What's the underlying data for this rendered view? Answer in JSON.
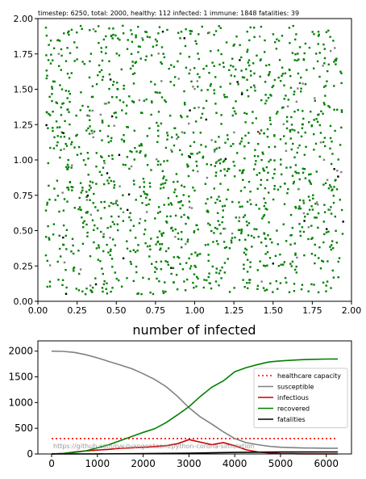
{
  "chart_data": [
    {
      "type": "scatter",
      "title": "timestep: 6250, total: 2000, healthy: 112 infected: 1 immune: 1848 fatalities: 39",
      "xlim": [
        0,
        2.0
      ],
      "ylim": [
        0,
        2.0
      ],
      "xticks": [
        "0.00",
        "0.25",
        "0.50",
        "0.75",
        "1.00",
        "1.25",
        "1.50",
        "1.75",
        "2.00"
      ],
      "yticks": [
        "0.00",
        "0.25",
        "0.50",
        "0.75",
        "1.00",
        "1.25",
        "1.50",
        "1.75",
        "2.00"
      ],
      "xtick_values": [
        0,
        0.25,
        0.5,
        0.75,
        1.0,
        1.25,
        1.5,
        1.75,
        2.0
      ],
      "ytick_values": [
        0,
        0.25,
        0.5,
        0.75,
        1.0,
        1.25,
        1.5,
        1.75,
        2.0
      ],
      "grid": false,
      "counts": {
        "total": 2000,
        "healthy": 112,
        "infected": 1,
        "immune": 1848,
        "fatalities": 39
      },
      "series_colors": {
        "healthy": "#808080",
        "infected": "#d00000",
        "immune": "#008000",
        "fatalities": "#000000"
      },
      "note_points": "population scattered uniformly over the 2.0 x 2.0 area; a small seeded sample is drawn"
    },
    {
      "type": "line",
      "title": "number of infected",
      "xlim": [
        -300,
        6550
      ],
      "ylim": [
        0,
        2200
      ],
      "xticks": [
        "0",
        "1000",
        "2000",
        "3000",
        "4000",
        "5000",
        "6000"
      ],
      "xtick_values": [
        0,
        1000,
        2000,
        3000,
        4000,
        5000,
        6000
      ],
      "yticks": [
        "0",
        "500",
        "1000",
        "1500",
        "2000"
      ],
      "ytick_values": [
        0,
        500,
        1000,
        1500,
        2000
      ],
      "legend_position": "center-right",
      "watermark": "https://github.com/paulvangentcom/python-corona-simulation",
      "healthcare_capacity": 300,
      "series": [
        {
          "name": "healthcare capacity",
          "color": "#ff0000",
          "style": "dotted",
          "x": [
            0,
            6250
          ],
          "values": [
            300,
            300
          ]
        },
        {
          "name": "susceptible",
          "color": "#808080",
          "style": "solid",
          "x": [
            0,
            250,
            500,
            750,
            1000,
            1250,
            1500,
            1750,
            2000,
            2250,
            2500,
            2750,
            3000,
            3250,
            3500,
            3750,
            4000,
            4250,
            4500,
            4750,
            5000,
            5250,
            5500,
            5750,
            6000,
            6250
          ],
          "values": [
            2000,
            1995,
            1975,
            1930,
            1870,
            1800,
            1730,
            1660,
            1560,
            1450,
            1310,
            1120,
            900,
            720,
            580,
            430,
            300,
            220,
            180,
            150,
            130,
            122,
            117,
            114,
            112,
            112
          ]
        },
        {
          "name": "infectious",
          "color": "#cc0000",
          "style": "solid",
          "x": [
            0,
            250,
            500,
            750,
            1000,
            1250,
            1500,
            1750,
            2000,
            2250,
            2500,
            2750,
            3000,
            3250,
            3500,
            3750,
            4000,
            4250,
            4500,
            4750,
            5000,
            5250,
            5500,
            5750,
            6000,
            6250
          ],
          "values": [
            1,
            10,
            40,
            60,
            75,
            90,
            110,
            120,
            130,
            145,
            160,
            200,
            280,
            230,
            180,
            220,
            160,
            80,
            40,
            20,
            8,
            4,
            2,
            1,
            1,
            1
          ]
        },
        {
          "name": "recovered",
          "color": "#008000",
          "style": "solid",
          "x": [
            0,
            250,
            500,
            750,
            1000,
            1250,
            1500,
            1750,
            2000,
            2250,
            2500,
            2750,
            3000,
            3250,
            3500,
            3750,
            4000,
            4250,
            4500,
            4750,
            5000,
            5250,
            5500,
            5750,
            6000,
            6250
          ],
          "values": [
            0,
            10,
            30,
            60,
            120,
            180,
            260,
            340,
            420,
            490,
            610,
            760,
            920,
            1120,
            1300,
            1420,
            1600,
            1680,
            1740,
            1790,
            1810,
            1825,
            1835,
            1842,
            1846,
            1848
          ]
        },
        {
          "name": "fatalities",
          "color": "#000000",
          "style": "solid",
          "x": [
            0,
            1000,
            2000,
            3000,
            4000,
            5000,
            6250
          ],
          "values": [
            0,
            2,
            6,
            15,
            30,
            37,
            39
          ]
        }
      ]
    }
  ]
}
